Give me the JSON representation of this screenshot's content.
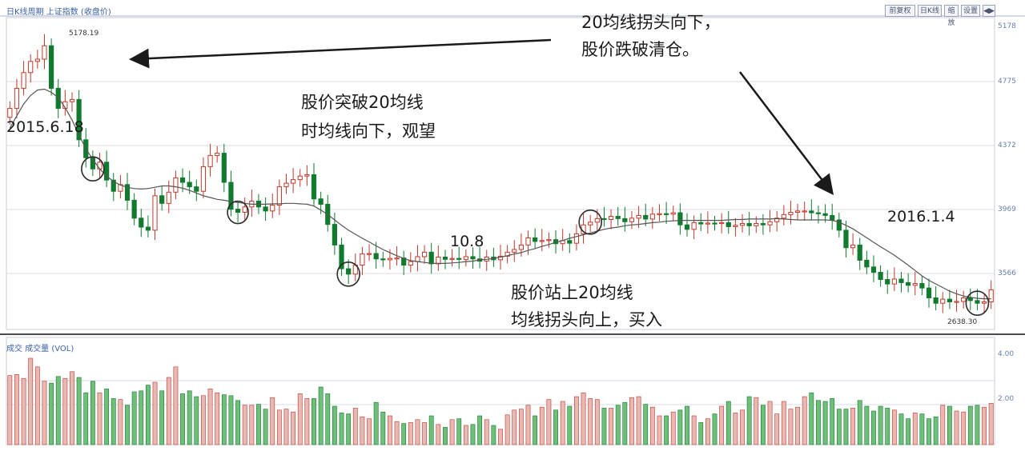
{
  "header": {
    "title": "日K线周期 上证指数 (收盘价)",
    "volume_title": "成交 成交量 (VOL)",
    "buttons": [
      "前复权",
      "日K线",
      "缩放",
      "设置",
      "◀▶"
    ]
  },
  "annotations": {
    "top_right_line1": "20均线拐头向下，",
    "top_right_line2": "股价跌破清仓。",
    "mid_line1": "股价突破20均线",
    "mid_line2": "时均线向下，观望",
    "bottom_line1": "股价站上20均线",
    "bottom_line2": "均线拐头向上，买入",
    "date_left": "2015.6.18",
    "date_right": "2016.1.4",
    "low_label": "10.8"
  },
  "colors": {
    "up": "#c0392b",
    "down": "#117a2f",
    "ma": "#555555",
    "grid": "#d8dbe6",
    "circle": "#2a2a2a",
    "arrow": "#1a1a1a"
  },
  "chart_data": {
    "type": "candlestick",
    "title": "",
    "ma_period": 20,
    "y_ticks": [
      "5178",
      "4775",
      "4372",
      "3969",
      "3566"
    ],
    "vol_ticks": [
      "4.00",
      "2.00"
    ],
    "max_label": "5178.19",
    "min_label": "2638.30",
    "closes": [
      44.0,
      48.5,
      52.0,
      54.5,
      55.0,
      58.0,
      48.5,
      44.0,
      45.5,
      46.0,
      37.0,
      33.0,
      30.5,
      32.0,
      28.0,
      25.5,
      27.0,
      23.5,
      19.5,
      17.5,
      16.8,
      24.5,
      22.8,
      25.3,
      28.5,
      27.5,
      26.5,
      25.5,
      31.0,
      33.5,
      34.0,
      27.5,
      21.5,
      20.8,
      22.0,
      23.3,
      22.0,
      21.1,
      22.4,
      26.5,
      27.3,
      28.1,
      28.9,
      29.2,
      23.8,
      22.6,
      18.1,
      13.5,
      8.2,
      7.0,
      9.0,
      11.5,
      11.6,
      10.4,
      10.2,
      10.5,
      10.6,
      9.0,
      9.8,
      10.9,
      11.9,
      9.3,
      10.8,
      10.3,
      10.5,
      10.3,
      10.9,
      10.4,
      9.9,
      10.8,
      10.2,
      11.0,
      11.9,
      12.5,
      13.5,
      15.1,
      14.3,
      14.5,
      14.7,
      13.8,
      14.5,
      13.9,
      16.0,
      18.0,
      18.6,
      19.4,
      19.2,
      19.9,
      19.4,
      18.7,
      19.5,
      20.1,
      19.3,
      20.4,
      20.5,
      20.4,
      20.7,
      18.0,
      17.0,
      18.5,
      18.2,
      18.4,
      18.3,
      18.5,
      17.6,
      17.9,
      18.3,
      17.8,
      18.3,
      18.0,
      18.7,
      19.5,
      20.3,
      20.8,
      21.1,
      21.1,
      20.7,
      20.5,
      20.1,
      19.1,
      16.8,
      12.9,
      13.5,
      10.1,
      8.6,
      7.4,
      5.8,
      4.8,
      5.9,
      5.1,
      4.5,
      4.9,
      3.9,
      1.7,
      0.5,
      1.4,
      0.8,
      0.9,
      1.7,
      1.1,
      0.5,
      0.8,
      3.5
    ],
    "ma20": [
      39.6,
      42.3,
      45.0,
      46.9,
      48.1,
      48.3,
      47.6,
      46.4,
      44.2,
      41.4,
      38.1,
      35.0,
      32.6,
      30.5,
      28.9,
      27.7,
      26.9,
      26.4,
      26.1,
      26.0,
      26.1,
      26.4,
      26.7,
      26.7,
      26.5,
      26.2,
      25.7,
      25.1,
      24.5,
      24.1,
      23.7,
      23.5,
      23.2,
      23.0,
      22.8,
      22.6,
      22.6,
      22.6,
      22.7,
      22.7,
      22.8,
      22.8,
      22.7,
      22.6,
      22.2,
      21.3,
      20.3,
      19.1,
      17.9,
      16.8,
      15.9,
      15.0,
      14.2,
      13.3,
      12.5,
      11.8,
      11.1,
      10.5,
      10.0,
      9.8,
      9.6,
      9.4,
      9.4,
      9.4,
      9.5,
      9.6,
      9.8,
      9.9,
      10.2,
      10.3,
      10.5,
      10.8,
      11.1,
      11.5,
      11.8,
      12.3,
      12.7,
      13.2,
      13.6,
      14.1,
      14.5,
      15.0,
      15.4,
      15.8,
      16.2,
      16.6,
      17.0,
      17.3,
      17.5,
      17.8,
      18.0,
      18.1,
      18.3,
      18.5,
      18.6,
      18.8,
      18.9,
      19.0,
      19.0,
      19.0,
      19.0,
      19.0,
      19.0,
      19.0,
      19.1,
      19.2,
      19.2,
      19.3,
      19.3,
      19.3,
      19.3,
      19.4,
      19.3,
      19.2,
      19.1,
      19.1,
      19.1,
      19.1,
      19.1,
      19.0,
      18.6,
      17.9,
      17.1,
      16.1,
      15.1,
      14.1,
      13.1,
      12.2,
      11.2,
      10.1,
      9.0,
      7.8,
      6.6,
      5.6,
      4.8,
      4.0,
      3.2,
      2.6,
      2.1,
      1.8,
      1.6,
      1.5,
      1.5
    ],
    "volumes": [
      72,
      73,
      69,
      90,
      81,
      66,
      64,
      71,
      69,
      76,
      70,
      54,
      66,
      54,
      58,
      48,
      47,
      41,
      55,
      56,
      62,
      65,
      56,
      70,
      81,
      53,
      56,
      50,
      51,
      58,
      54,
      52,
      51,
      46,
      41,
      41,
      42,
      37,
      49,
      36,
      37,
      34,
      53,
      48,
      48,
      60,
      53,
      40,
      33,
      32,
      38,
      29,
      27,
      44,
      34,
      30,
      24,
      22,
      23,
      26,
      23,
      30,
      21,
      18,
      26,
      27,
      20,
      21,
      30,
      26,
      20,
      16,
      31,
      36,
      37,
      41,
      30,
      39,
      47,
      36,
      45,
      40,
      50,
      54,
      48,
      47,
      38,
      38,
      41,
      44,
      49,
      50,
      42,
      39,
      30,
      30,
      34,
      36,
      40,
      30,
      23,
      27,
      32,
      40,
      45,
      33,
      36,
      50,
      49,
      41,
      45,
      32,
      45,
      37,
      39,
      50,
      54,
      46,
      45,
      48,
      37,
      37,
      38,
      46,
      40,
      35,
      40,
      38,
      36,
      32,
      27,
      33,
      32,
      27,
      29,
      41,
      40,
      35,
      34,
      40,
      41,
      39,
      43,
      38,
      33
    ]
  }
}
